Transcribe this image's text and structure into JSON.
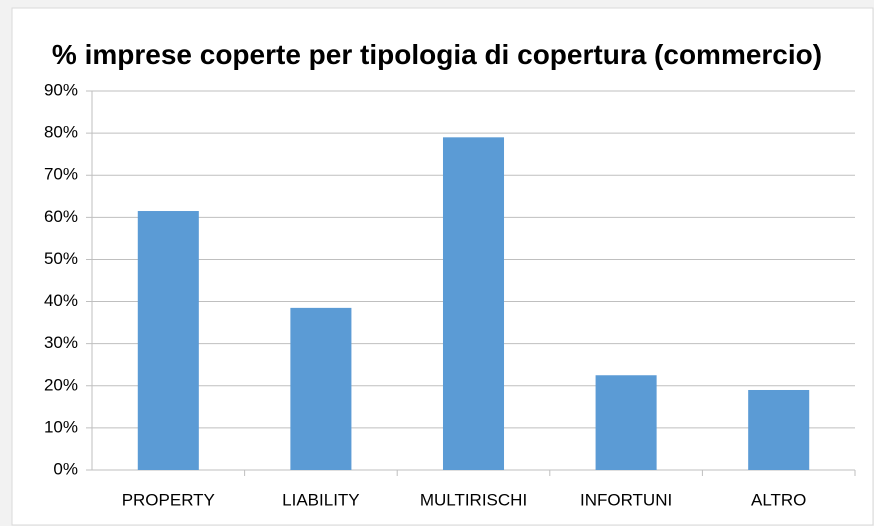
{
  "chart_data": {
    "type": "bar",
    "title": "% imprese coperte per tipologia di copertura (commercio)",
    "categories": [
      "PROPERTY",
      "LIABILITY",
      "MULTIRISCHI",
      "INFORTUNI",
      "ALTRO"
    ],
    "values": [
      61.5,
      38.5,
      79,
      22.5,
      19
    ],
    "color": "#5b9bd5",
    "ylim": [
      0,
      90
    ],
    "yticks": [
      {
        "value": 0,
        "label": "0%"
      },
      {
        "value": 10,
        "label": "10%"
      },
      {
        "value": 20,
        "label": "20%"
      },
      {
        "value": 30,
        "label": "30%"
      },
      {
        "value": 40,
        "label": "40%"
      },
      {
        "value": 50,
        "label": "50%"
      },
      {
        "value": 60,
        "label": "60%"
      },
      {
        "value": 70,
        "label": "70%"
      },
      {
        "value": 80,
        "label": "80%"
      },
      {
        "value": 90,
        "label": "90%"
      }
    ],
    "grid": true
  }
}
